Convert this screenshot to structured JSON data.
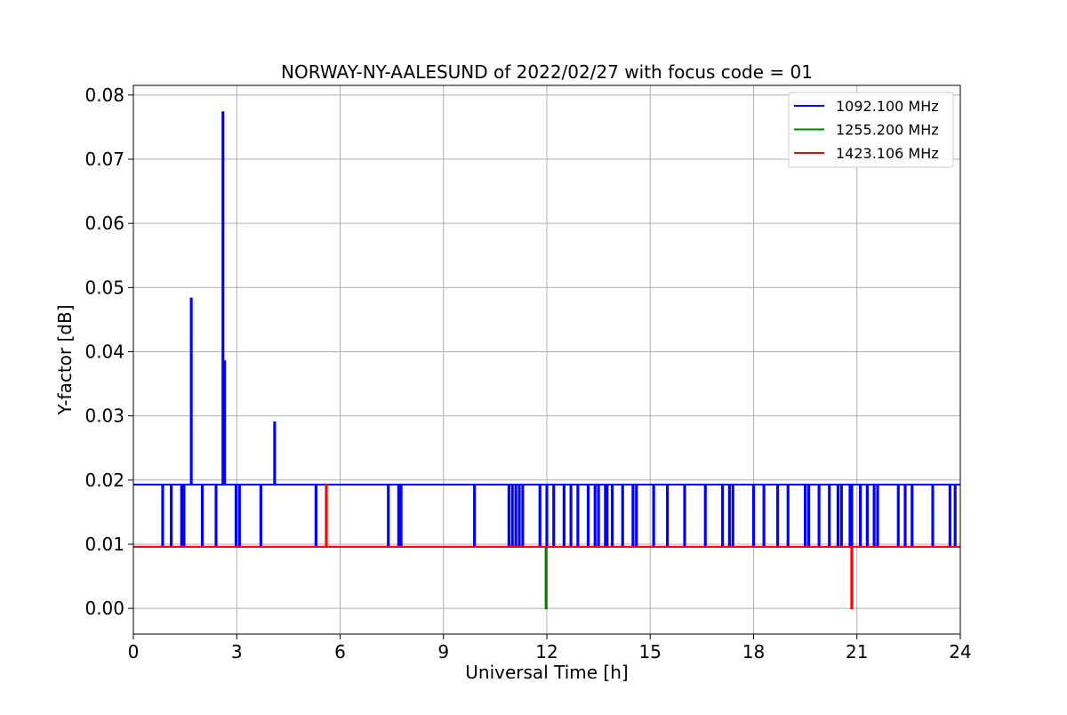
{
  "chart_data": {
    "type": "line",
    "title": "NORWAY-NY-AALESUND of 2022/02/27 with focus code = 01",
    "xlabel": "Universal Time [h]",
    "ylabel": "Y-factor [dB]",
    "xlim": [
      0,
      24
    ],
    "ylim": [
      -0.004,
      0.0815
    ],
    "x_ticks": [
      0,
      3,
      6,
      9,
      12,
      15,
      18,
      21,
      24
    ],
    "x_tick_labels": [
      "0",
      "3",
      "6",
      "9",
      "12",
      "15",
      "18",
      "21",
      "24"
    ],
    "y_ticks": [
      0.0,
      0.01,
      0.02,
      0.03,
      0.04,
      0.05,
      0.06,
      0.07,
      0.08
    ],
    "y_tick_labels": [
      "0.00",
      "0.01",
      "0.02",
      "0.03",
      "0.04",
      "0.05",
      "0.06",
      "0.07",
      "0.08"
    ],
    "grid": true,
    "legend_position": "top-right",
    "series": [
      {
        "name": "1092.100 MHz",
        "color": "#0000ff",
        "baseline": 0.0193,
        "dips_to": 0.0096,
        "dip_times": [
          0.85,
          1.1,
          1.4,
          1.47,
          2.0,
          2.4,
          2.98,
          3.08,
          3.7,
          5.3,
          7.4,
          7.7,
          7.77,
          9.9,
          10.9,
          11.0,
          11.1,
          11.2,
          11.3,
          11.8,
          12.0,
          12.2,
          12.5,
          12.7,
          12.9,
          13.2,
          13.4,
          13.5,
          13.7,
          13.75,
          13.9,
          14.2,
          14.5,
          14.6,
          15.1,
          15.5,
          16.0,
          16.6,
          17.1,
          17.3,
          17.4,
          18.0,
          18.3,
          18.7,
          19.0,
          19.5,
          19.6,
          19.9,
          20.2,
          20.45,
          20.55,
          20.8,
          20.85,
          21.1,
          21.3,
          21.5,
          21.6,
          22.2,
          22.4,
          22.6,
          23.2,
          23.7,
          23.85
        ],
        "peaks": [
          {
            "x": 1.68,
            "y": 0.0483
          },
          {
            "x": 2.6,
            "y": 0.0773
          },
          {
            "x": 2.65,
            "y": 0.0385
          },
          {
            "x": 4.1,
            "y": 0.029
          }
        ]
      },
      {
        "name": "1255.200 MHz",
        "color": "#008000",
        "baseline": 0.0096,
        "dip_times": [
          11.98
        ],
        "dips_to": 0.0
      },
      {
        "name": "1423.106 MHz",
        "color": "#ff0000",
        "baseline": 0.0096,
        "dip_times": [
          20.85
        ],
        "dips_to": 0.0,
        "peaks": [
          {
            "x": 5.6,
            "y": 0.0193
          }
        ]
      }
    ]
  }
}
